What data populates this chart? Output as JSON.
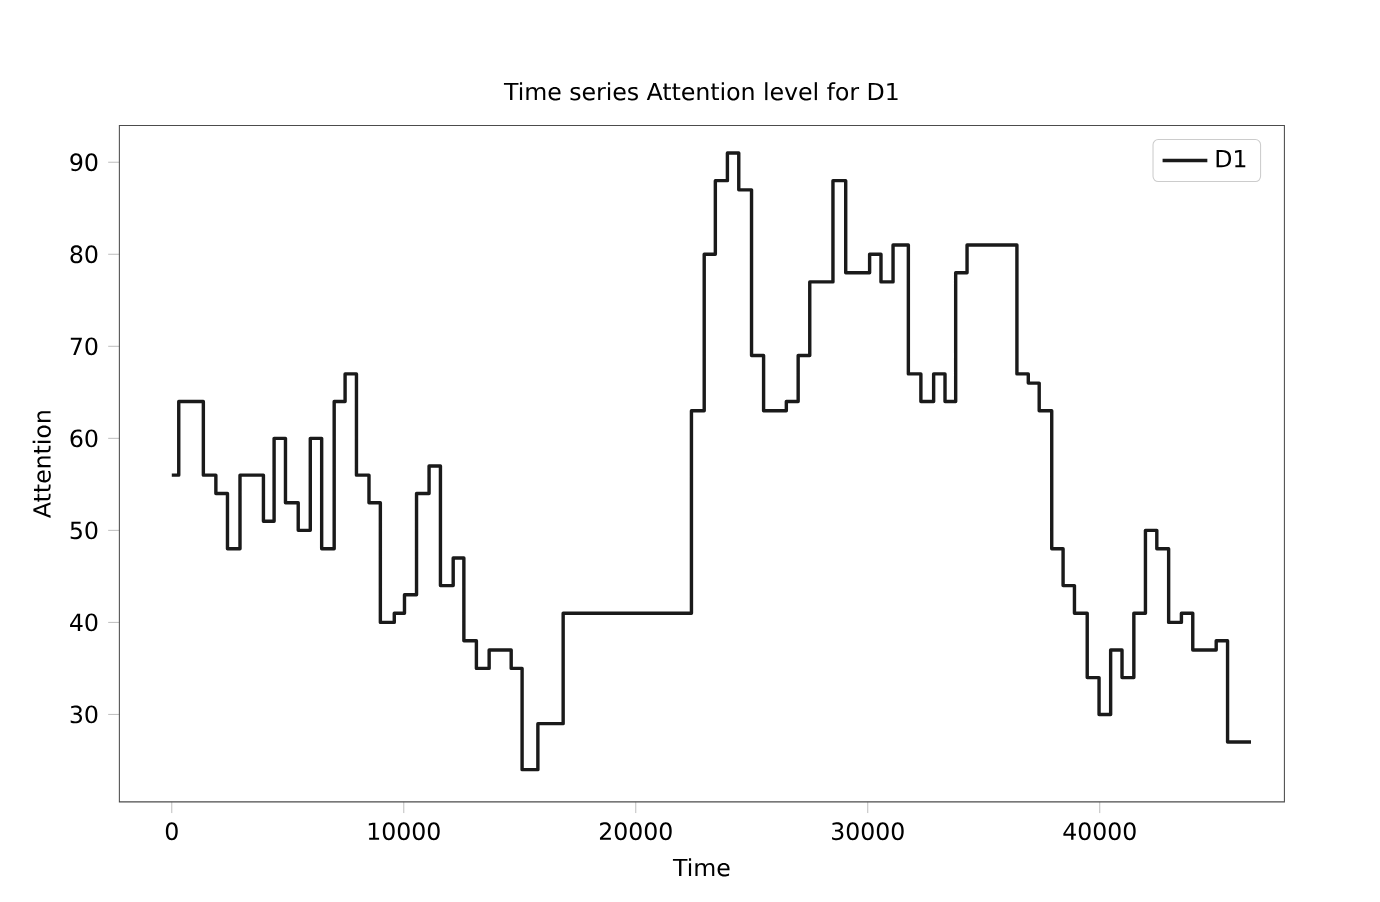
{
  "chart_data": {
    "type": "step",
    "title": "Time series Attention level for D1",
    "xlabel": "Time",
    "ylabel": "Attention",
    "x": [
      0,
      300,
      1360,
      1900,
      2400,
      2940,
      3950,
      4410,
      4900,
      5450,
      5970,
      6460,
      7000,
      7470,
      7960,
      8500,
      8990,
      9590,
      10030,
      10550,
      11090,
      11580,
      12130,
      12590,
      13130,
      13680,
      14630,
      15100,
      15780,
      16870,
      22400,
      22950,
      23430,
      23950,
      24440,
      24990,
      25510,
      26490,
      27000,
      27500,
      28500,
      29050,
      30080,
      30570,
      31090,
      31750,
      32290,
      32840,
      33330,
      33790,
      34280,
      36430,
      36920,
      37390,
      37930,
      38420,
      38910,
      39460,
      39970,
      40470,
      40960,
      41470,
      41970,
      42460,
      42970,
      43520,
      44010,
      45020,
      45510,
      46520
    ],
    "series": [
      {
        "name": "D1",
        "color": "#1a1a1a",
        "values": [
          56,
          64,
          56,
          54,
          48,
          56,
          51,
          60,
          53,
          50,
          60,
          48,
          64,
          67,
          56,
          53,
          40,
          41,
          43,
          54,
          57,
          44,
          47,
          38,
          35,
          37,
          35,
          24,
          29,
          41,
          63,
          80,
          88,
          91,
          87,
          69,
          63,
          64,
          69,
          77,
          88,
          78,
          80,
          77,
          81,
          67,
          64,
          67,
          64,
          78,
          81,
          67,
          66,
          63,
          48,
          44,
          41,
          34,
          30,
          37,
          34,
          41,
          50,
          48,
          40,
          41,
          37,
          38,
          27,
          27
        ]
      }
    ],
    "xlim": [
      -2260,
      47960
    ],
    "ylim": [
      20.5,
      94
    ],
    "xticks": [
      0,
      10000,
      20000,
      30000,
      40000
    ],
    "yticks": [
      30,
      40,
      50,
      60,
      70,
      80,
      90
    ],
    "legend": "top right",
    "grid": false,
    "marker": "none",
    "line_style": "solid"
  }
}
